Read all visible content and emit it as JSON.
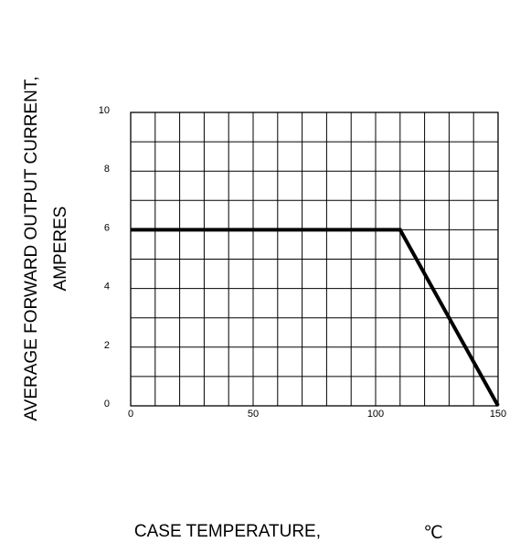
{
  "chart_data": {
    "type": "line",
    "title": "",
    "xlabel": "CASE TEMPERATURE,",
    "xunit": "℃",
    "ylabel_line1": "AVERAGE FORWARD OUTPUT CURRENT,",
    "ylabel_line2": "AMPERES",
    "xlim": [
      0,
      150
    ],
    "ylim": [
      0,
      10
    ],
    "x_ticks": [
      "0",
      "50",
      "100",
      "150"
    ],
    "y_ticks": [
      "0",
      "2",
      "4",
      "6",
      "8",
      "10"
    ],
    "grid": true,
    "grid_x_divisions": 15,
    "grid_y_divisions": 10,
    "series": [
      {
        "x": [
          0,
          110,
          150
        ],
        "y": [
          6,
          6,
          0
        ]
      }
    ]
  }
}
